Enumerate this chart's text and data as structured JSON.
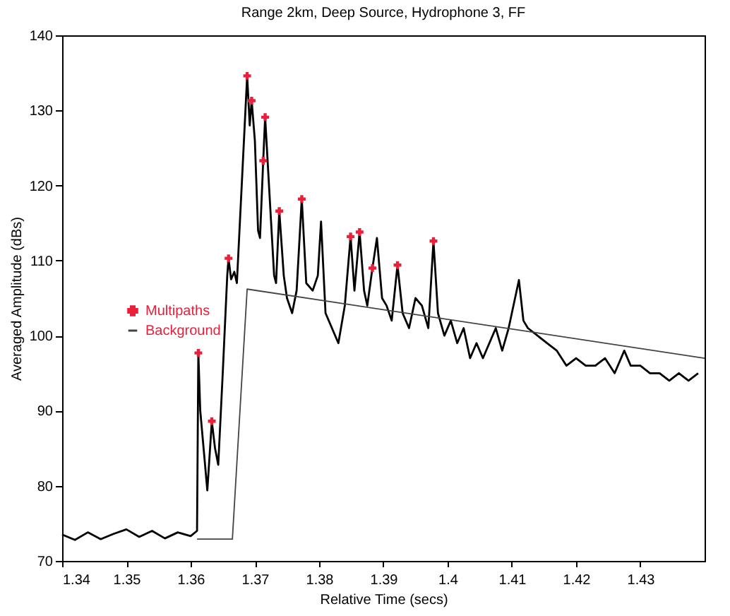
{
  "chart_data": {
    "type": "line",
    "title": "Range 2km, Deep Source, Hydrophone 3, FF",
    "xlabel": "Relative Time (secs)",
    "ylabel": "Averaged Amplitude (dBs)",
    "xlim": [
      1.34,
      1.44
    ],
    "xticks": [
      1.34,
      1.35,
      1.36,
      1.37,
      1.38,
      1.39,
      1.4,
      1.41,
      1.42,
      1.43
    ],
    "ylim": [
      70,
      140
    ],
    "yticks": [
      70,
      80,
      90,
      100,
      110,
      120,
      130,
      140
    ],
    "grid": false,
    "legend": "left",
    "series": [
      {
        "color": "#000000",
        "marker": "none",
        "x": [
          1.34,
          1.342,
          1.344,
          1.346,
          1.348,
          1.35,
          1.352,
          1.354,
          1.356,
          1.358,
          1.36,
          1.361,
          1.3612,
          1.3615,
          1.3626,
          1.3633,
          1.3638,
          1.3643,
          1.365,
          1.3657,
          1.3659,
          1.3663,
          1.3668,
          1.3672,
          1.3688,
          1.3692,
          1.3695,
          1.37,
          1.3705,
          1.3708,
          1.3713,
          1.3716,
          1.3722,
          1.373,
          1.3733,
          1.3738,
          1.3745,
          1.375,
          1.3758,
          1.3765,
          1.3773,
          1.378,
          1.379,
          1.3798,
          1.3803,
          1.381,
          1.382,
          1.383,
          1.384,
          1.3849,
          1.3855,
          1.3863,
          1.387,
          1.3875,
          1.3883,
          1.389,
          1.3898,
          1.3905,
          1.3913,
          1.3922,
          1.393,
          1.394,
          1.395,
          1.396,
          1.397,
          1.3978,
          1.3985,
          1.3995,
          1.4005,
          1.4015,
          1.4025,
          1.4035,
          1.4045,
          1.4055,
          1.4065,
          1.4075,
          1.4085,
          1.4095,
          1.4111,
          1.4118,
          1.4125,
          1.414,
          1.4155,
          1.417,
          1.4185,
          1.42,
          1.4215,
          1.423,
          1.4245,
          1.426,
          1.4275,
          1.4285,
          1.43,
          1.4315,
          1.433,
          1.4345,
          1.436,
          1.4375,
          1.439
        ],
        "values": [
          73.5,
          72.8,
          73.8,
          72.9,
          73.6,
          74.2,
          73.2,
          74,
          73,
          73.8,
          73.3,
          74,
          97.7,
          90,
          79.4,
          88.6,
          85,
          82.8,
          95,
          108,
          110.3,
          107.5,
          108.5,
          107,
          134.6,
          128,
          131.3,
          126,
          114,
          113,
          123.3,
          129.1,
          120,
          108,
          107,
          116.6,
          108,
          105,
          103,
          106,
          118.2,
          107,
          106,
          108,
          115.2,
          103,
          101,
          99,
          104,
          113.2,
          106,
          113.8,
          106,
          104,
          109,
          113,
          105,
          104,
          102,
          109.4,
          103,
          101,
          105,
          104,
          101,
          112.6,
          103,
          100,
          102,
          99,
          101,
          97,
          99,
          97,
          99,
          101,
          98,
          101,
          107.4,
          102,
          101,
          100,
          99,
          98,
          96,
          97,
          96,
          96,
          97,
          95,
          98,
          96,
          96,
          95,
          95,
          94,
          95,
          94,
          95
        ]
      },
      {
        "type": "scatter",
        "name": "Multipaths",
        "color": "#e8203c",
        "marker": "cross",
        "x": [
          1.3612,
          1.3633,
          1.3659,
          1.3688,
          1.3695,
          1.3713,
          1.3716,
          1.3738,
          1.3773,
          1.3849,
          1.3863,
          1.3883,
          1.3922,
          1.3978
        ],
        "values": [
          97.7,
          88.6,
          110.3,
          134.6,
          131.3,
          123.3,
          129.1,
          116.6,
          118.2,
          113.2,
          113.8,
          109,
          109.4,
          112.6
        ]
      },
      {
        "name": "Background",
        "color": "#444444",
        "marker": "none",
        "x": [
          1.361,
          1.3665,
          1.3688,
          1.44
        ],
        "values": [
          72.9,
          72.9,
          106.2,
          97
        ]
      }
    ]
  }
}
